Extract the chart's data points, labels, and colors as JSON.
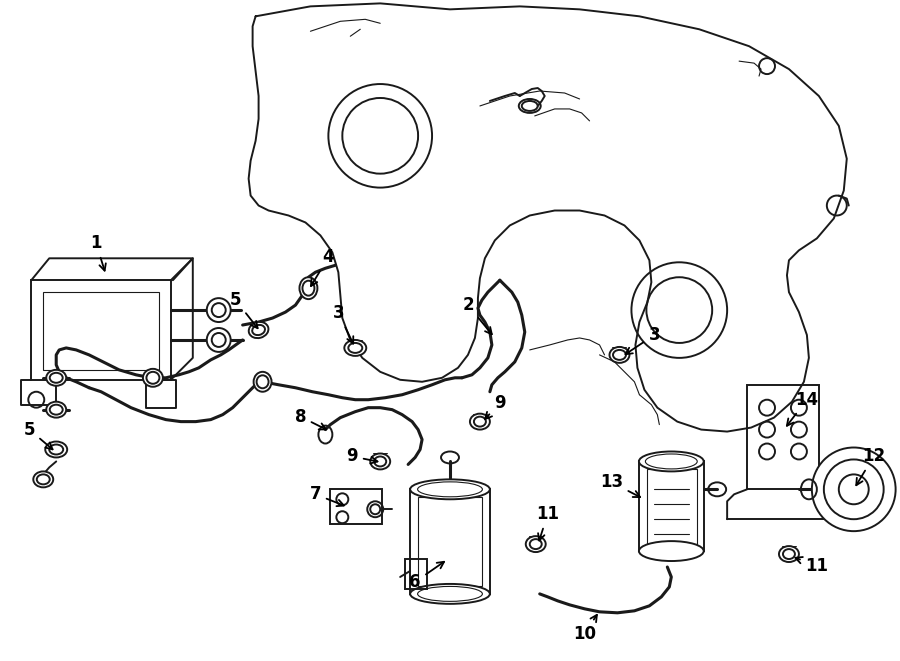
{
  "background_color": "#ffffff",
  "line_color": "#1a1a1a",
  "fig_width": 9.0,
  "fig_height": 6.61,
  "dpi": 100,
  "lw": 1.4,
  "lw_thick": 2.2,
  "lw_thin": 0.8,
  "fontsize_label": 11,
  "fontsize_small": 9
}
